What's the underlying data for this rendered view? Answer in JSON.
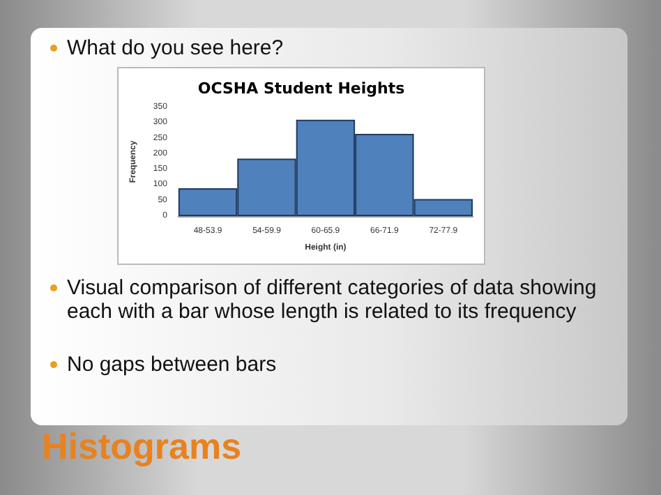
{
  "chart_data": {
    "type": "bar",
    "title": "OCSHA Student Heights",
    "xlabel": "Height (in)",
    "ylabel": "Frequency",
    "categories": [
      "48-53.9",
      "54-59.9",
      "60-65.9",
      "66-71.9",
      "72-77.9"
    ],
    "values": [
      90,
      185,
      310,
      265,
      55
    ],
    "color": "#4f81bd",
    "ylim": [
      0,
      350
    ],
    "yticks": [
      0,
      50,
      100,
      150,
      200,
      250,
      300,
      350
    ],
    "grid": false,
    "annotations": [
      "What do you see here?",
      "Visual comparison of different categories of data showing each with a bar whose length is related to its frequency",
      "No gaps between bars",
      "Histograms"
    ]
  }
}
